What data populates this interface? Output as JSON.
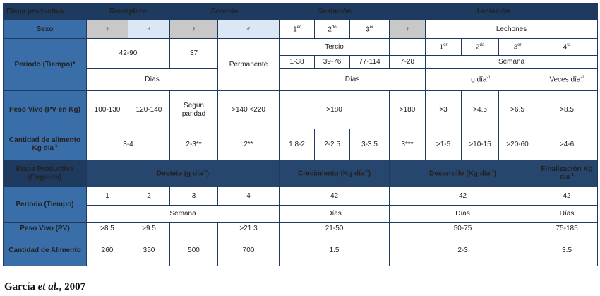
{
  "top": {
    "h_etapa": "Etapa productiva",
    "h_reemplazo": "Reemplazo",
    "h_servicio": "Servicio",
    "h_gestacion": "Gestación",
    "h_lactacion": "Lactación",
    "sexo_label": "Sexo",
    "female": "♀",
    "male": "♂",
    "g1": "1",
    "g1s": "er",
    "g2": "2",
    "g2s": "do",
    "g3": "3",
    "g3s": "er",
    "lechones": "Lechones",
    "periodo_label": "Periodo (Tiempo)*",
    "r_periodo": "42-90",
    "s_periodo": "37",
    "permanente": "Permanente",
    "tercio": "Tercio",
    "gt1": "1-38",
    "gt2": "39-76",
    "gt3": "77-114",
    "lact_fem": "7-28",
    "w1": "1",
    "w1s": "er",
    "w2": "2",
    "w2s": "da",
    "w3": "3",
    "w3s": "er",
    "w4": "4",
    "w4s": "ta",
    "semana": "Semana",
    "dias": "Días",
    "g_dia": "g día",
    "veces_dia": "Veces día",
    "sup_neg1": "-1",
    "peso_label": "Peso Vivo (PV en Kg)",
    "pv_r1": "100-130",
    "pv_r2": "120-140",
    "pv_serv": "Según paridad",
    "pv_perm": ">140 <220",
    "pv_gest": ">180",
    "pv_lf": ">180",
    "pv_w1": ">3",
    "pv_w2": ">4.5",
    "pv_w3": ">6.5",
    "pv_w4": ">8.5",
    "cant_label": "Cantidad de alimento Kg día",
    "ca_r": "3-4",
    "ca_s": "2-3**",
    "ca_p": "2**",
    "ca_g1": "1.8-2",
    "ca_g2": "2-2.5",
    "ca_g3": "3-3.5",
    "ca_lf": "3***",
    "ca_w1": ">1-5",
    "ca_w2": ">10-15",
    "ca_w3": ">20-60",
    "ca_w4": ">4-6"
  },
  "bottom": {
    "h_etapa": "Etapa Productiva (Engorda)",
    "h_destete": "Destete (g día",
    "h_crec": "Crecimiento (Kg día",
    "h_desa": "Desarrollo (Kg día",
    "close_paren": ")",
    "sup1": "-1",
    "h_final": "Finalización Kg día",
    "periodo_label": "Periodo (Tiempo)",
    "d1": "1",
    "d2": "2",
    "d3": "3",
    "d4": "4",
    "crec_p": "42",
    "desa_p": "42",
    "fin_p": "42",
    "semana": "Semana",
    "dias": "Días",
    "peso_label": "Peso Vivo (PV)",
    "pv1": ">8.5",
    "pv2": ">9.5",
    "pv3": "",
    "pv4": ">21.3",
    "pv_crec": "21-50",
    "pv_desa": "50-75",
    "pv_fin": "75-185",
    "cant_label": "Cantidad de Alimento",
    "c1": "260",
    "c2": "350",
    "c3": "500",
    "c4": "700",
    "c_crec": "1.5",
    "c_desa": "2-3",
    "c_fin": "3.5"
  },
  "citation": {
    "author": "García",
    "etal": "et al.",
    "year": ", 2007"
  }
}
